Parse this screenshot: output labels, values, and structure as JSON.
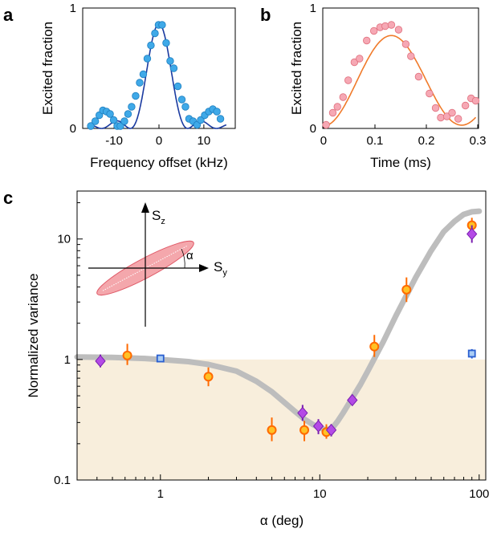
{
  "chart_data": [
    {
      "panel": "a",
      "type": "scatter",
      "xlabel": "Frequency offset (kHz)",
      "ylabel": "Excited fraction",
      "xlim": [
        -17,
        17
      ],
      "ylim": [
        0,
        1
      ],
      "xticks": [
        -10,
        0,
        10
      ],
      "xtick_labels": [
        "-10",
        "0",
        "10"
      ],
      "yticks": [
        0,
        1
      ],
      "ytick_labels": [
        "0",
        "1"
      ],
      "fit_line_color": "#1a3aa0",
      "marker_color": "#3fa9e8",
      "points": [
        {
          "x": -15.2,
          "y": 0.02
        },
        {
          "x": -14.2,
          "y": 0.06
        },
        {
          "x": -13.3,
          "y": 0.11
        },
        {
          "x": -12.5,
          "y": 0.15
        },
        {
          "x": -11.7,
          "y": 0.14
        },
        {
          "x": -10.9,
          "y": 0.12
        },
        {
          "x": -10.1,
          "y": 0.07
        },
        {
          "x": -9.3,
          "y": 0.02
        },
        {
          "x": -8.6,
          "y": 0.02
        },
        {
          "x": -7.7,
          "y": 0.06
        },
        {
          "x": -6.9,
          "y": 0.12
        },
        {
          "x": -6.1,
          "y": 0.18
        },
        {
          "x": -5.2,
          "y": 0.27
        },
        {
          "x": -4.3,
          "y": 0.38
        },
        {
          "x": -3.5,
          "y": 0.45
        },
        {
          "x": -2.6,
          "y": 0.58
        },
        {
          "x": -1.8,
          "y": 0.69
        },
        {
          "x": -0.9,
          "y": 0.79
        },
        {
          "x": -0.1,
          "y": 0.86
        },
        {
          "x": 0.7,
          "y": 0.86
        },
        {
          "x": 1.6,
          "y": 0.71
        },
        {
          "x": 2.5,
          "y": 0.56
        },
        {
          "x": 3.3,
          "y": 0.5
        },
        {
          "x": 4.2,
          "y": 0.35
        },
        {
          "x": 5.1,
          "y": 0.24
        },
        {
          "x": 5.9,
          "y": 0.18
        },
        {
          "x": 6.7,
          "y": 0.08
        },
        {
          "x": 7.6,
          "y": 0.06
        },
        {
          "x": 8.5,
          "y": 0.03
        },
        {
          "x": 9.3,
          "y": 0.07
        },
        {
          "x": 10.2,
          "y": 0.11
        },
        {
          "x": 11.1,
          "y": 0.14
        },
        {
          "x": 12.0,
          "y": 0.16
        },
        {
          "x": 12.9,
          "y": 0.14
        },
        {
          "x": 13.7,
          "y": 0.08
        }
      ]
    },
    {
      "panel": "b",
      "type": "scatter",
      "xlabel": "Time (ms)",
      "ylabel": "Excited fraction",
      "xlim": [
        0,
        0.3
      ],
      "ylim": [
        0,
        1
      ],
      "xticks": [
        0,
        0.1,
        0.2,
        0.3
      ],
      "xtick_labels": [
        "0",
        "0.1",
        "0.2",
        "0.3"
      ],
      "yticks": [
        0,
        1
      ],
      "ytick_labels": [
        "0",
        "1"
      ],
      "fit_line_color": "#f07a2a",
      "marker_color": "#f6a8b4",
      "points": [
        {
          "x": 0.005,
          "y": 0.03
        },
        {
          "x": 0.018,
          "y": 0.13
        },
        {
          "x": 0.027,
          "y": 0.18
        },
        {
          "x": 0.038,
          "y": 0.26
        },
        {
          "x": 0.048,
          "y": 0.4
        },
        {
          "x": 0.06,
          "y": 0.55
        },
        {
          "x": 0.07,
          "y": 0.58
        },
        {
          "x": 0.084,
          "y": 0.73
        },
        {
          "x": 0.098,
          "y": 0.81
        },
        {
          "x": 0.11,
          "y": 0.84
        },
        {
          "x": 0.12,
          "y": 0.85
        },
        {
          "x": 0.132,
          "y": 0.86
        },
        {
          "x": 0.146,
          "y": 0.82
        },
        {
          "x": 0.16,
          "y": 0.7
        },
        {
          "x": 0.17,
          "y": 0.6
        },
        {
          "x": 0.185,
          "y": 0.43
        },
        {
          "x": 0.206,
          "y": 0.29
        },
        {
          "x": 0.218,
          "y": 0.17
        },
        {
          "x": 0.228,
          "y": 0.09
        },
        {
          "x": 0.24,
          "y": 0.1
        },
        {
          "x": 0.25,
          "y": 0.13
        },
        {
          "x": 0.262,
          "y": 0.08
        },
        {
          "x": 0.276,
          "y": 0.19
        },
        {
          "x": 0.287,
          "y": 0.25
        },
        {
          "x": 0.296,
          "y": 0.23
        }
      ]
    },
    {
      "panel": "c",
      "type": "scatter",
      "xscale": "log",
      "yscale": "log",
      "xlabel": "α (deg)",
      "ylabel": "Normalized variance",
      "xlim": [
        0.3,
        110
      ],
      "ylim": [
        0.1,
        25
      ],
      "xticks": [
        1,
        10,
        100
      ],
      "xtick_labels": [
        "1",
        "10",
        "100"
      ],
      "yticks": [
        0.1,
        1,
        10
      ],
      "ytick_labels": [
        "0.1",
        "1",
        "10"
      ],
      "shaded_region_below": 1,
      "shade_color": "#f8eedc",
      "theory_curve_color": "#bdbdbd",
      "theory_curve": [
        {
          "x": 0.3,
          "y": 1.05
        },
        {
          "x": 0.5,
          "y": 1.04
        },
        {
          "x": 0.8,
          "y": 1.02
        },
        {
          "x": 1.0,
          "y": 1.0
        },
        {
          "x": 1.5,
          "y": 0.96
        },
        {
          "x": 2.0,
          "y": 0.91
        },
        {
          "x": 3.0,
          "y": 0.8
        },
        {
          "x": 4.0,
          "y": 0.66
        },
        {
          "x": 5.0,
          "y": 0.54
        },
        {
          "x": 6.0,
          "y": 0.44
        },
        {
          "x": 7.0,
          "y": 0.37
        },
        {
          "x": 8.0,
          "y": 0.32
        },
        {
          "x": 9.0,
          "y": 0.29
        },
        {
          "x": 10.0,
          "y": 0.27
        },
        {
          "x": 11.0,
          "y": 0.26
        },
        {
          "x": 12.0,
          "y": 0.27
        },
        {
          "x": 13.0,
          "y": 0.31
        },
        {
          "x": 14.0,
          "y": 0.36
        },
        {
          "x": 16.0,
          "y": 0.48
        },
        {
          "x": 18.0,
          "y": 0.62
        },
        {
          "x": 20.0,
          "y": 0.8
        },
        {
          "x": 25.0,
          "y": 1.4
        },
        {
          "x": 30.0,
          "y": 2.3
        },
        {
          "x": 40.0,
          "y": 4.8
        },
        {
          "x": 50.0,
          "y": 8.0
        },
        {
          "x": 60.0,
          "y": 11.5
        },
        {
          "x": 70.0,
          "y": 14.0
        },
        {
          "x": 80.0,
          "y": 16.0
        },
        {
          "x": 90.0,
          "y": 16.8
        },
        {
          "x": 100.0,
          "y": 17.0
        }
      ],
      "series": [
        {
          "name": "circles",
          "marker": "circle",
          "fill": "#ffc125",
          "edge": "#ff6a00",
          "points": [
            {
              "x": 0.62,
              "y": 1.08,
              "ylo": 0.9,
              "yhi": 1.35
            },
            {
              "x": 2.0,
              "y": 0.72,
              "ylo": 0.6,
              "yhi": 0.86
            },
            {
              "x": 5.0,
              "y": 0.26,
              "ylo": 0.21,
              "yhi": 0.33
            },
            {
              "x": 8.0,
              "y": 0.26,
              "ylo": 0.21,
              "yhi": 0.31
            },
            {
              "x": 11.0,
              "y": 0.25,
              "ylo": 0.22,
              "yhi": 0.29
            },
            {
              "x": 22.0,
              "y": 1.28,
              "ylo": 1.05,
              "yhi": 1.6
            },
            {
              "x": 35.0,
              "y": 3.8,
              "ylo": 3.0,
              "yhi": 4.8
            },
            {
              "x": 90.0,
              "y": 13.0,
              "ylo": 11.0,
              "yhi": 15.0
            }
          ]
        },
        {
          "name": "diamonds",
          "marker": "diamond",
          "fill": "#b44ae6",
          "edge": "#7a1fb0",
          "points": [
            {
              "x": 0.42,
              "y": 0.97,
              "ylo": 0.86,
              "yhi": 1.1
            },
            {
              "x": 7.8,
              "y": 0.36,
              "ylo": 0.31,
              "yhi": 0.42
            },
            {
              "x": 9.8,
              "y": 0.28,
              "ylo": 0.24,
              "yhi": 0.32
            },
            {
              "x": 11.8,
              "y": 0.26,
              "ylo": 0.23,
              "yhi": 0.29
            },
            {
              "x": 16.0,
              "y": 0.46,
              "ylo": 0.42,
              "yhi": 0.51
            },
            {
              "x": 90.0,
              "y": 11.0,
              "ylo": 9.3,
              "yhi": 13.0
            }
          ]
        },
        {
          "name": "squares",
          "marker": "square",
          "fill": "#aacdf5",
          "edge": "#2a5fd0",
          "points": [
            {
              "x": 1.0,
              "y": 1.02,
              "ylo": 0.96,
              "yhi": 1.08
            },
            {
              "x": 90.0,
              "y": 1.12,
              "ylo": 1.02,
              "yhi": 1.22
            }
          ]
        }
      ],
      "inset": {
        "axis_z_label": "S",
        "axis_z_sub": "z",
        "axis_y_label": "S",
        "axis_y_sub": "y",
        "angle_label": "α",
        "ellipse_color": "#f08a90"
      }
    }
  ],
  "panel_letters": [
    "a",
    "b",
    "c"
  ]
}
